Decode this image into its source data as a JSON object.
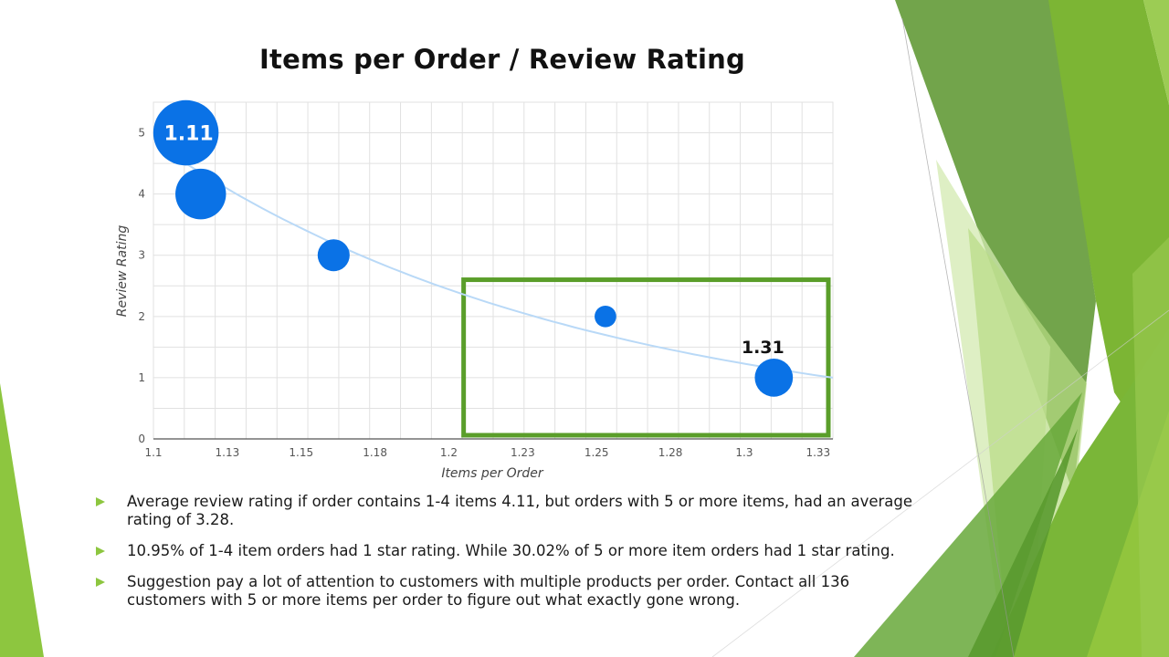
{
  "slide": {
    "title": "Items per Order / Review Rating",
    "bullets": [
      "Average review rating if order contains 1-4 items 4.11, but orders with 5 or more items, had an average rating of 3.28.",
      "10.95% of 1-4 item orders had 1 star rating. While 30.02% of 5 or more item orders had 1 star rating.",
      "Suggestion pay a lot of attention to customers with multiple products per order. Contact all 136 customers with 5 or more items per order to figure out what exactly gone wrong."
    ]
  },
  "colors": {
    "bubble": "#0a72e6",
    "trendline": "#b9d9f7",
    "highlight_box": "#5a9e2a",
    "grid": "#e1e1e1",
    "accent_green": "#8dc63f"
  },
  "chart_data": {
    "type": "scatter",
    "title": "Items per Order / Review Rating",
    "xlabel": "Items per Order",
    "ylabel": "Review Rating",
    "xlim": [
      1.1,
      1.33
    ],
    "ylim": [
      0,
      5.5
    ],
    "x_ticks": [
      1.1,
      1.125,
      1.15,
      1.175,
      1.2,
      1.225,
      1.25,
      1.275,
      1.3,
      1.325
    ],
    "x_tick_labels": [
      "1.1",
      "1.13",
      "1.15",
      "1.18",
      "1.2",
      "1.23",
      "1.25",
      "1.28",
      "1.3",
      "1.33"
    ],
    "y_ticks": [
      0,
      1,
      2,
      3,
      4,
      5
    ],
    "y_tick_labels": [
      "0",
      "1",
      "2",
      "3",
      "4",
      "5"
    ],
    "series": [
      {
        "name": "Review Rating",
        "points": [
          {
            "x": 1.111,
            "y": 5,
            "size": 5,
            "label": "1.11"
          },
          {
            "x": 1.116,
            "y": 4,
            "size": 3
          },
          {
            "x": 1.161,
            "y": 3,
            "size": 1.2
          },
          {
            "x": 1.253,
            "y": 2,
            "size": 0.55
          },
          {
            "x": 1.31,
            "y": 1,
            "size": 1.7,
            "label": "1.31"
          }
        ]
      }
    ],
    "trendline": {
      "type": "exponential",
      "from": [
        1.111,
        4.5
      ],
      "to": [
        1.33,
        1.0
      ]
    },
    "highlight_range": {
      "x": [
        1.205,
        1.33
      ],
      "y": [
        0.06,
        2.6
      ]
    }
  }
}
